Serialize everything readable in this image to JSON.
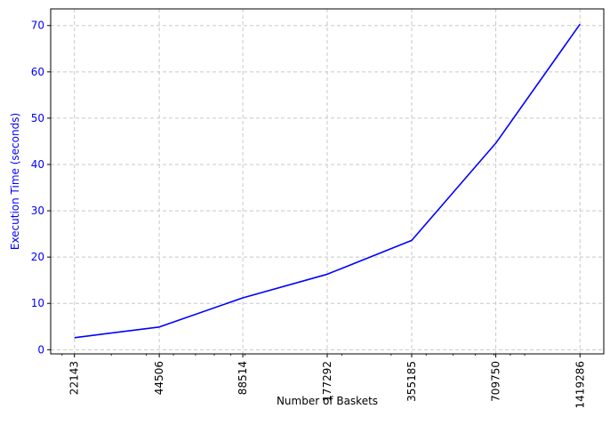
{
  "chart_data": {
    "type": "line",
    "title": "",
    "xlabel": "Number of Baskets",
    "ylabel": "Execution Time (seconds)",
    "x_scale": "log",
    "x": [
      22143,
      44506,
      88514,
      177292,
      355185,
      709750,
      1419286
    ],
    "x_tick_labels": [
      "22143",
      "44506",
      "88514",
      "177292",
      "355185",
      "709750",
      "1419286"
    ],
    "y_ticks": [
      0,
      10,
      20,
      30,
      40,
      50,
      60,
      70
    ],
    "ylim": [
      -0.9,
      73.6
    ],
    "grid": true,
    "series": [
      {
        "values": [
          2.6,
          4.9,
          11.2,
          16.3,
          23.6,
          44.6,
          70.3
        ],
        "color": "#0000ff"
      }
    ],
    "colors": {
      "line": "#0000ff",
      "y_axis_text": "#0000ff",
      "grid": "#c8c8c8"
    }
  }
}
